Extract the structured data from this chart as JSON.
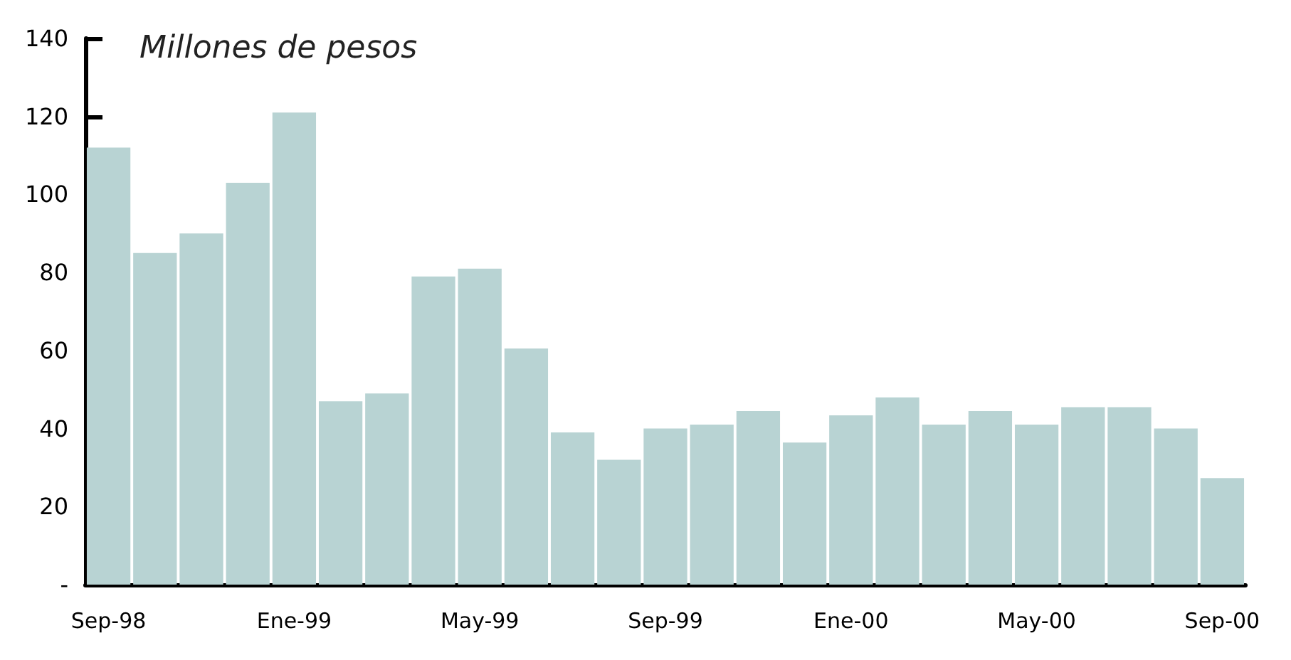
{
  "chart_data": {
    "type": "bar",
    "title": "Millones de pesos",
    "categories": [
      "Sep-98",
      null,
      null,
      null,
      "Ene-99",
      null,
      null,
      null,
      "May-99",
      null,
      null,
      null,
      "Sep-99",
      null,
      null,
      null,
      "Ene-00",
      null,
      null,
      null,
      "May-00",
      null,
      null,
      null,
      "Sep-00"
    ],
    "values": [
      112,
      85,
      90,
      103,
      121,
      47,
      49,
      79,
      81,
      60.5,
      39,
      32,
      40,
      41,
      44.5,
      36.4,
      43.4,
      48,
      41,
      44.5,
      41,
      45.5,
      45.5,
      40,
      27.3
    ],
    "color": "#b8d3d3",
    "ylim": [
      0,
      140
    ],
    "yticks": [
      {
        "value": 0,
        "label": "-"
      },
      20,
      40,
      60,
      80,
      100,
      120,
      140
    ],
    "grid": false
  }
}
